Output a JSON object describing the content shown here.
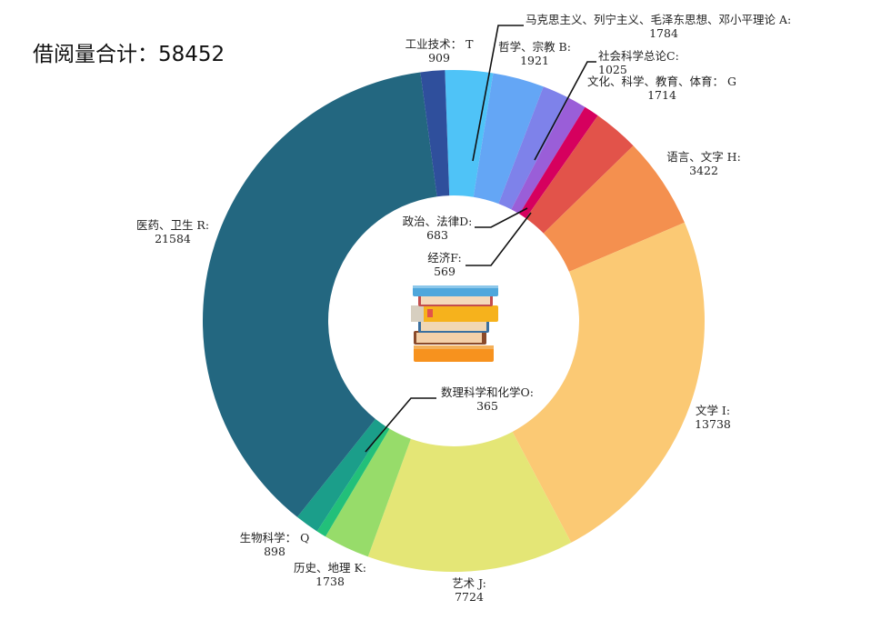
{
  "header": {
    "total_label": "借阅量合计：",
    "total_value": "58452"
  },
  "colors": {
    "background": "#ffffff",
    "leader_line": "#111111"
  },
  "chart_data": {
    "type": "pie",
    "variant": "donut",
    "total": 58452,
    "slices": [
      {
        "label": "马克思主义、列宁主义、毛泽东思想、邓小平理论 A:",
        "value": 1784,
        "color": "#4fc3f7"
      },
      {
        "label": "哲学、宗教 B:",
        "value": 1921,
        "color": "#64a6f5"
      },
      {
        "label": "社会科学总论C:",
        "value": 1025,
        "color": "#7e82ea"
      },
      {
        "label": "政治、法律D:",
        "value": 683,
        "color": "#9a5ed8"
      },
      {
        "label": "经济F:",
        "value": 569,
        "color": "#d6005e"
      },
      {
        "label": "文化、科学、教育、体育：  G",
        "value": 1714,
        "color": "#e2534a"
      },
      {
        "label": "语言、文字 H:",
        "value": 3422,
        "color": "#f4904f"
      },
      {
        "label": "文学 I:",
        "value": 13738,
        "color": "#fbc974"
      },
      {
        "label": "艺术 J:",
        "value": 7724,
        "color": "#e4e676"
      },
      {
        "label": "历史、地理 K:",
        "value": 1738,
        "color": "#97dc6a"
      },
      {
        "label": "数理科学和化学O:",
        "value": 365,
        "color": "#22c07a"
      },
      {
        "label": "生物科学：  Q",
        "value": 898,
        "color": "#1b9e8a"
      },
      {
        "label": "医药、卫生 R:",
        "value": 21584,
        "color": "#236780"
      },
      {
        "label": "工业技术：  T",
        "value": 909,
        "color": "#2f4f9c"
      }
    ]
  }
}
